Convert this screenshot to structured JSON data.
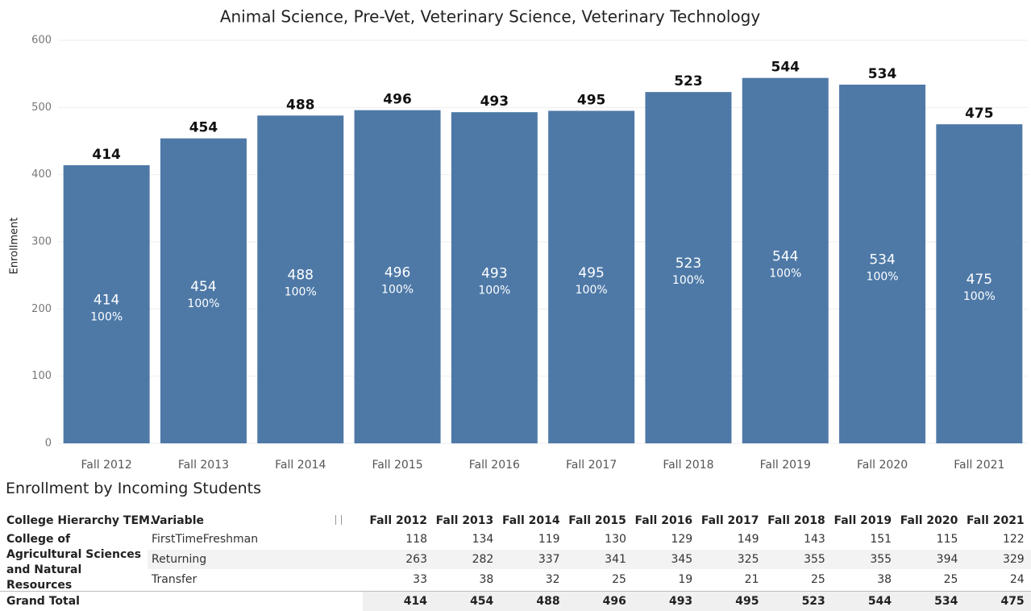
{
  "chart_data": {
    "type": "bar",
    "title": "Animal Science, Pre-Vet, Veterinary Science, Veterinary Technology",
    "ylabel": "Enrollment",
    "categories": [
      "Fall 2012",
      "Fall 2013",
      "Fall 2014",
      "Fall 2015",
      "Fall 2016",
      "Fall 2017",
      "Fall 2018",
      "Fall 2019",
      "Fall 2020",
      "Fall 2021"
    ],
    "values": [
      414,
      454,
      488,
      496,
      493,
      495,
      523,
      544,
      534,
      475
    ],
    "inner_labels": [
      "100%",
      "100%",
      "100%",
      "100%",
      "100%",
      "100%",
      "100%",
      "100%",
      "100%",
      "100%"
    ],
    "color": "#4e79a7",
    "ylim": [
      0,
      600
    ],
    "yticks": [
      0,
      100,
      200,
      300,
      400,
      500,
      600
    ],
    "grid": true
  },
  "table": {
    "title": "Enrollment by Incoming Students",
    "columns": [
      "College Hierarchy TEM..",
      "Variable",
      "Fall 2012",
      "Fall 2013",
      "Fall 2014",
      "Fall 2015",
      "Fall 2016",
      "Fall 2017",
      "Fall 2018",
      "Fall 2019",
      "Fall 2020",
      "Fall 2021"
    ],
    "group": "College of Agricultural Sciences and Natural Resources",
    "rows": [
      {
        "variable": "FirstTimeFreshman",
        "values": [
          118,
          134,
          119,
          130,
          129,
          149,
          143,
          151,
          115,
          122
        ]
      },
      {
        "variable": "Returning",
        "values": [
          263,
          282,
          337,
          341,
          345,
          325,
          355,
          355,
          394,
          329
        ]
      },
      {
        "variable": "Transfer",
        "values": [
          33,
          38,
          32,
          25,
          19,
          21,
          25,
          38,
          25,
          24
        ]
      }
    ],
    "total": {
      "label": "Grand Total",
      "values": [
        414,
        454,
        488,
        496,
        493,
        495,
        523,
        544,
        534,
        475
      ]
    }
  }
}
